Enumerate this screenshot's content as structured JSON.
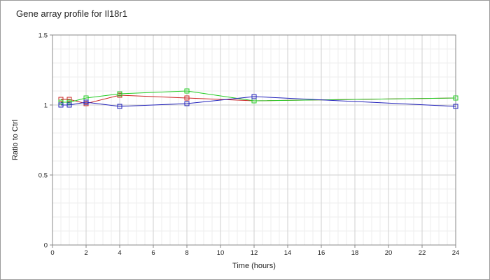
{
  "chart_data": {
    "type": "line",
    "title": "Gene array profile for Il18r1",
    "xlabel": "Time (hours)",
    "ylabel": "Ratio to Ctrl",
    "xlim": [
      0,
      24
    ],
    "ylim": [
      0,
      1.5
    ],
    "x_ticks": [
      0,
      2,
      4,
      6,
      8,
      10,
      12,
      14,
      16,
      18,
      20,
      22,
      24
    ],
    "y_ticks": [
      0,
      0.5,
      1,
      1.5
    ],
    "y_tick_labels": [
      "0",
      "0.5",
      "1",
      "1.5"
    ],
    "grid": true,
    "legend": "none",
    "series": [
      {
        "color": "#cc2222",
        "x": [
          0.5,
          1,
          2,
          4,
          8,
          12,
          24
        ],
        "y": [
          1.04,
          1.04,
          1.01,
          1.07,
          1.05,
          1.03,
          1.05
        ]
      },
      {
        "color": "#22cc22",
        "x": [
          0.5,
          1,
          2,
          4,
          8,
          12,
          24
        ],
        "y": [
          1.02,
          1.02,
          1.05,
          1.08,
          1.1,
          1.03,
          1.05
        ]
      },
      {
        "color": "#2222bb",
        "x": [
          0.5,
          1,
          2,
          4,
          8,
          12,
          24
        ],
        "y": [
          1.0,
          1.0,
          1.02,
          0.99,
          1.01,
          1.06,
          0.99
        ]
      }
    ]
  }
}
